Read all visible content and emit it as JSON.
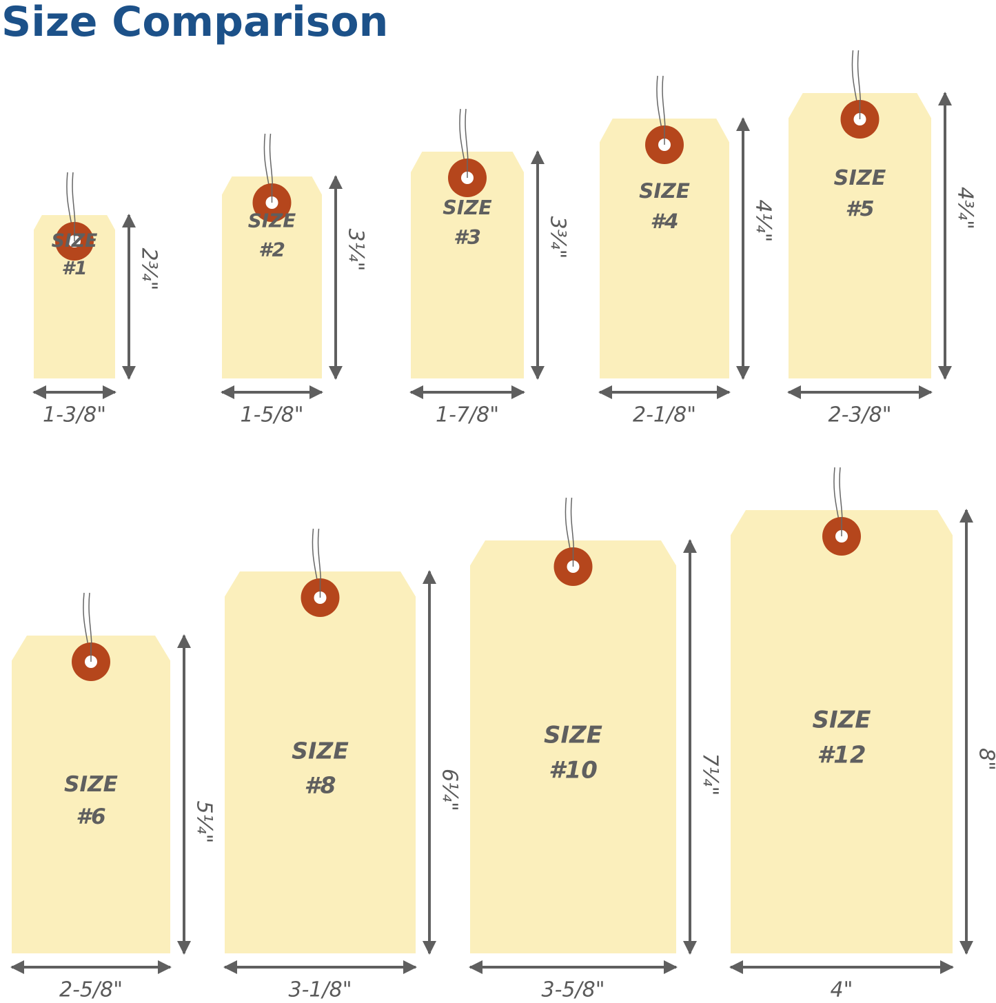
{
  "title": "Size Comparison",
  "tags": [
    {
      "size": "SIZE",
      "number": "#1",
      "width": "1-3/8\"",
      "height": "2¾\""
    },
    {
      "size": "SIZE",
      "number": "#2",
      "width": "1-5/8\"",
      "height": "3¼\""
    },
    {
      "size": "SIZE",
      "number": "#3",
      "width": "1-7/8\"",
      "height": "3¾\""
    },
    {
      "size": "SIZE",
      "number": "#4",
      "width": "2-1/8\"",
      "height": "4¼\""
    },
    {
      "size": "SIZE",
      "number": "#5",
      "width": "2-3/8\"",
      "height": "4¾\""
    },
    {
      "size": "SIZE",
      "number": "#6",
      "width": "2-5/8\"",
      "height": "5¼\""
    },
    {
      "size": "SIZE",
      "number": "#8",
      "width": "3-1/8\"",
      "height": "6¼\""
    },
    {
      "size": "SIZE",
      "number": "#10",
      "width": "3-5/8\"",
      "height": "7¼\""
    },
    {
      "size": "SIZE",
      "number": "#12",
      "width": "4\"",
      "height": "8\""
    }
  ]
}
